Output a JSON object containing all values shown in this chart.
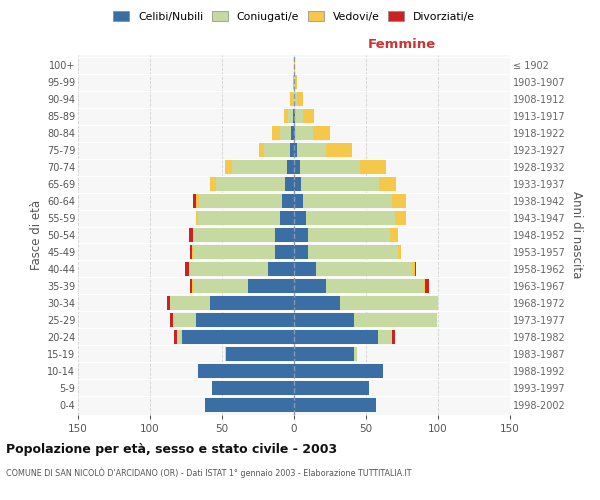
{
  "age_groups": [
    "0-4",
    "5-9",
    "10-14",
    "15-19",
    "20-24",
    "25-29",
    "30-34",
    "35-39",
    "40-44",
    "45-49",
    "50-54",
    "55-59",
    "60-64",
    "65-69",
    "70-74",
    "75-79",
    "80-84",
    "85-89",
    "90-94",
    "95-99",
    "100+"
  ],
  "birth_years": [
    "1998-2002",
    "1993-1997",
    "1988-1992",
    "1983-1987",
    "1978-1982",
    "1973-1977",
    "1968-1972",
    "1963-1967",
    "1958-1962",
    "1953-1957",
    "1948-1952",
    "1943-1947",
    "1938-1942",
    "1933-1937",
    "1928-1932",
    "1923-1927",
    "1918-1922",
    "1913-1917",
    "1908-1912",
    "1903-1907",
    "≤ 1902"
  ],
  "colors": {
    "celibi": "#3a6ea5",
    "coniugati": "#c5d9a0",
    "vedovi": "#f5c84c",
    "divorziati": "#cc2222"
  },
  "males": {
    "celibi": [
      62,
      57,
      67,
      47,
      78,
      68,
      58,
      32,
      18,
      13,
      13,
      10,
      8,
      6,
      5,
      3,
      2,
      1,
      0,
      0,
      0
    ],
    "coniugati": [
      0,
      0,
      0,
      1,
      3,
      16,
      28,
      38,
      55,
      57,
      57,
      57,
      58,
      48,
      38,
      18,
      8,
      3,
      1,
      0,
      0
    ],
    "vedovi": [
      0,
      0,
      0,
      0,
      0,
      0,
      0,
      1,
      0,
      1,
      0,
      1,
      2,
      4,
      5,
      3,
      5,
      3,
      2,
      1,
      0
    ],
    "divorziati": [
      0,
      0,
      0,
      0,
      2,
      2,
      2,
      1,
      3,
      1,
      3,
      0,
      2,
      0,
      0,
      0,
      0,
      0,
      0,
      0,
      0
    ]
  },
  "females": {
    "celibi": [
      57,
      52,
      62,
      42,
      58,
      42,
      32,
      22,
      15,
      10,
      10,
      8,
      6,
      5,
      4,
      2,
      1,
      1,
      0,
      0,
      0
    ],
    "coniugati": [
      0,
      0,
      0,
      2,
      10,
      57,
      68,
      68,
      67,
      62,
      57,
      62,
      62,
      54,
      42,
      20,
      12,
      5,
      2,
      1,
      0
    ],
    "vedovi": [
      0,
      0,
      0,
      0,
      0,
      0,
      0,
      1,
      2,
      2,
      5,
      8,
      10,
      12,
      18,
      18,
      12,
      8,
      4,
      1,
      1
    ],
    "divorziati": [
      0,
      0,
      0,
      0,
      2,
      0,
      0,
      3,
      1,
      0,
      0,
      0,
      0,
      0,
      0,
      0,
      0,
      0,
      0,
      0,
      0
    ]
  },
  "xlim": 150,
  "title": "Popolazione per età, sesso e stato civile - 2003",
  "subtitle": "COMUNE DI SAN NICOLÒ D'ARCIDANO (OR) - Dati ISTAT 1° gennaio 2003 - Elaborazione TUTTITALIA.IT",
  "ylabel_left": "Fasce di età",
  "ylabel_right": "Anni di nascita",
  "xlabel_femmine": "Femmine",
  "legend_labels": [
    "Celibi/Nubili",
    "Coniugati/e",
    "Vedovi/e",
    "Divorziati/e"
  ],
  "background_color": "#ffffff",
  "plot_bg": "#f7f7f7",
  "grid_color": "#d0d0d0"
}
